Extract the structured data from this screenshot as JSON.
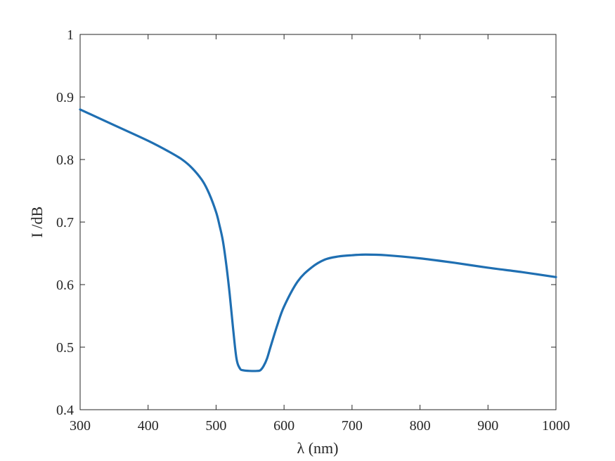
{
  "colors": {
    "series": "#1f6fb2",
    "axis": "#262626",
    "background": "#ffffff"
  },
  "chart_data": {
    "type": "line",
    "title": "",
    "xlabel": "λ (nm)",
    "ylabel": "I /dB",
    "xlim": [
      300,
      1000
    ],
    "ylim": [
      0.4,
      1.0
    ],
    "xticks": [
      300,
      400,
      500,
      600,
      700,
      800,
      900,
      1000
    ],
    "xtick_labels": [
      "300",
      "400",
      "500",
      "600",
      "700",
      "800",
      "900",
      "1000"
    ],
    "yticks": [
      0.4,
      0.5,
      0.6,
      0.7,
      0.8,
      0.9,
      1.0
    ],
    "ytick_labels": [
      "0.4",
      "0.5",
      "0.6",
      "0.7",
      "0.8",
      "0.9",
      "1"
    ],
    "grid": false,
    "legend": "none",
    "series": [
      {
        "x": [
          300,
          350,
          400,
          430,
          450,
          465,
          480,
          490,
          500,
          505,
          510,
          515,
          520,
          525,
          530,
          535,
          540,
          550,
          560,
          565,
          570,
          575,
          580,
          590,
          600,
          620,
          640,
          660,
          680,
          700,
          720,
          750,
          800,
          850,
          900,
          950,
          1000
        ],
        "y": [
          0.88,
          0.855,
          0.83,
          0.813,
          0.8,
          0.786,
          0.766,
          0.745,
          0.716,
          0.695,
          0.67,
          0.632,
          0.585,
          0.53,
          0.482,
          0.466,
          0.463,
          0.462,
          0.462,
          0.463,
          0.47,
          0.482,
          0.5,
          0.535,
          0.565,
          0.605,
          0.627,
          0.64,
          0.645,
          0.647,
          0.648,
          0.647,
          0.642,
          0.635,
          0.627,
          0.62,
          0.612
        ]
      }
    ]
  }
}
